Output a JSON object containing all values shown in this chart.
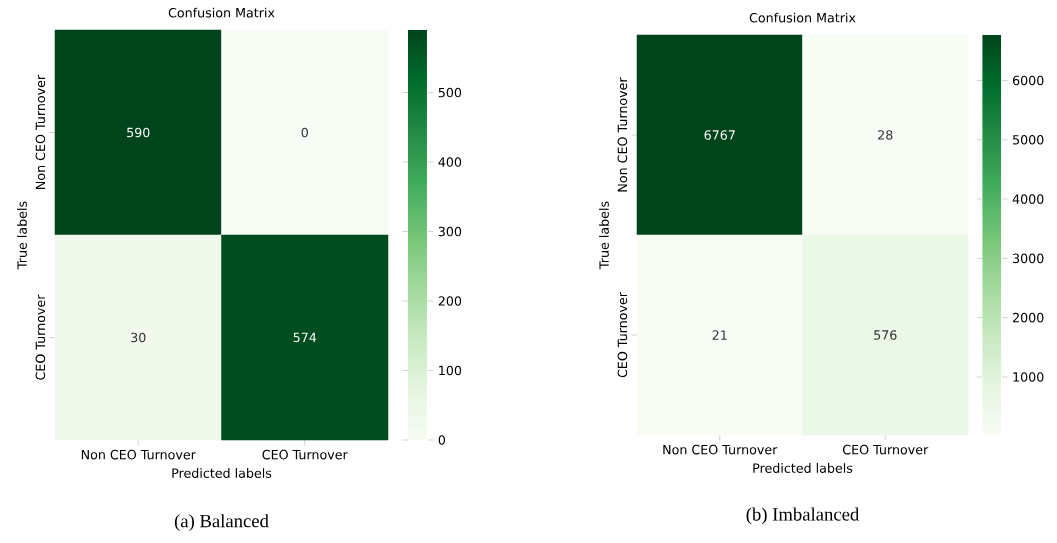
{
  "chart_data": [
    {
      "type": "heatmap",
      "title": "Confusion Matrix",
      "xlabel": "Predicted labels",
      "ylabel": "True labels",
      "categories": [
        "Non CEO Turnover",
        "CEO Turnover"
      ],
      "y_categories": [
        "Non CEO Turnover",
        "CEO Turnover"
      ],
      "cells": [
        [
          590,
          0
        ],
        [
          30,
          574
        ]
      ],
      "data_labels": true,
      "clim": [
        0,
        590
      ],
      "cticks": [
        0,
        100,
        200,
        300,
        400,
        500
      ],
      "annotations": [
        "(a) Balanced"
      ]
    },
    {
      "type": "heatmap",
      "title": "Confusion Matrix",
      "xlabel": "Predicted labels",
      "ylabel": "True labels",
      "categories": [
        "Non CEO Turnover",
        "CEO Turnover"
      ],
      "y_categories": [
        "Non CEO Turnover",
        "CEO Turnover"
      ],
      "cells": [
        [
          6767,
          28
        ],
        [
          21,
          576
        ]
      ],
      "data_labels": true,
      "clim": [
        21,
        6767
      ],
      "cticks": [
        1000,
        2000,
        3000,
        4000,
        5000,
        6000
      ],
      "annotations": [
        "(b) Imbalanced"
      ]
    }
  ]
}
